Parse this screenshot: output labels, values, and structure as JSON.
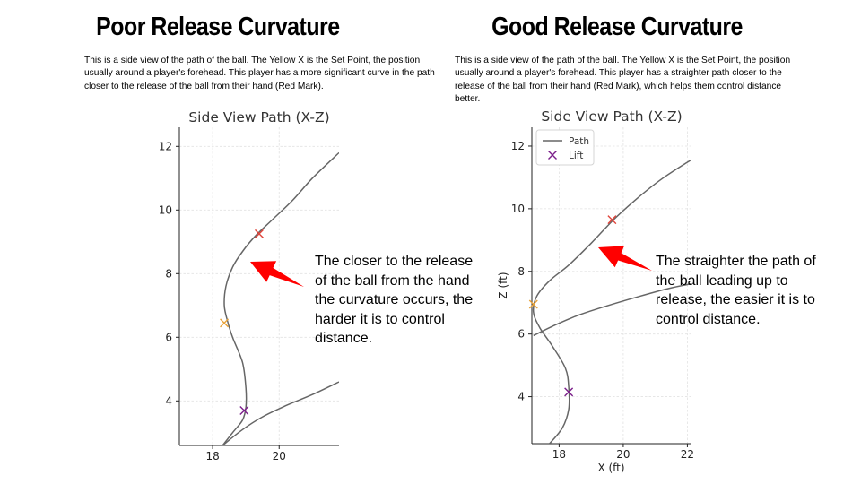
{
  "slide": {
    "left_title": "Poor Release Curvature",
    "right_title": "Good Release Curvature",
    "left_description": "This is a side view of the path of the ball. The Yellow X is the Set Point, the position usually around a player's forehead. This player has a more significant curve in the path closer to the release of the ball from their hand (Red Mark).",
    "right_description": "This is a side view of the path of the ball. The Yellow X is the Set Point, the position usually around a player's forehead. This player has a straighter path closer to the release of the ball from their hand (Red Mark), which helps them control distance better.",
    "left_annotation": "The closer to the release of the ball from the hand the curvature occurs, the harder it is to control distance.",
    "right_annotation": "The straighter the path of the ball leading up to release, the easier it is to control distance.",
    "arrow_color": "#ff0000"
  },
  "chart_data": [
    {
      "type": "line",
      "title": "Side View Path (X-Z)",
      "xlabel": "",
      "ylabel": "",
      "xlim": [
        17.0,
        21.8
      ],
      "ylim": [
        2.6,
        12.6
      ],
      "x_ticks": [
        18,
        20
      ],
      "y_ticks": [
        4,
        6,
        8,
        10,
        12
      ],
      "grid": true,
      "legend": null,
      "series": [
        {
          "role": "path",
          "color": "#666666",
          "points": [
            [
              18.3,
              2.6
            ],
            [
              18.6,
              3.0
            ],
            [
              18.9,
              3.4
            ],
            [
              19.0,
              3.8
            ],
            [
              19.0,
              4.4
            ],
            [
              18.9,
              5.2
            ],
            [
              18.6,
              6.0
            ],
            [
              18.45,
              6.5
            ],
            [
              18.35,
              7.0
            ],
            [
              18.4,
              7.6
            ],
            [
              18.6,
              8.2
            ],
            [
              18.9,
              8.7
            ],
            [
              19.3,
              9.2
            ],
            [
              19.8,
              9.7
            ],
            [
              20.4,
              10.3
            ],
            [
              21.0,
              11.0
            ],
            [
              21.8,
              11.8
            ]
          ]
        },
        {
          "role": "path",
          "color": "#666666",
          "points": [
            [
              18.3,
              2.6
            ],
            [
              18.9,
              3.1
            ],
            [
              19.5,
              3.5
            ],
            [
              20.2,
              3.85
            ],
            [
              21.0,
              4.2
            ],
            [
              21.8,
              4.6
            ]
          ]
        }
      ],
      "markers": [
        {
          "name": "Release",
          "x": 19.4,
          "y": 9.25,
          "color": "#e0443a"
        },
        {
          "name": "Set Point",
          "x": 18.35,
          "y": 6.45,
          "color": "#e8a33a"
        },
        {
          "name": "Lift",
          "x": 18.95,
          "y": 3.7,
          "color": "#7b1f8a"
        }
      ]
    },
    {
      "type": "line",
      "title": "Side View Path (X-Z)",
      "xlabel": "X (ft)",
      "ylabel": "Z (ft)",
      "xlim": [
        17.15,
        22.1
      ],
      "ylim": [
        2.5,
        12.6
      ],
      "x_ticks": [
        18,
        20,
        22
      ],
      "y_ticks": [
        4,
        6,
        8,
        10,
        12
      ],
      "grid": true,
      "legend": "top-left",
      "legend_items": [
        {
          "label": "Path",
          "kind": "line",
          "color": "#666666"
        },
        {
          "label": "Lift",
          "kind": "x",
          "color": "#7b1f8a"
        }
      ],
      "series": [
        {
          "role": "path",
          "color": "#666666",
          "points": [
            [
              17.7,
              2.5
            ],
            [
              18.1,
              3.0
            ],
            [
              18.3,
              3.6
            ],
            [
              18.3,
              4.3
            ],
            [
              18.2,
              4.9
            ],
            [
              17.8,
              5.6
            ],
            [
              17.4,
              6.2
            ],
            [
              17.2,
              6.7
            ],
            [
              17.3,
              7.2
            ],
            [
              17.7,
              7.7
            ],
            [
              18.3,
              8.2
            ],
            [
              19.0,
              8.9
            ],
            [
              19.7,
              9.65
            ],
            [
              20.4,
              10.3
            ],
            [
              21.2,
              10.95
            ],
            [
              22.1,
              11.55
            ]
          ]
        },
        {
          "role": "path",
          "color": "#666666",
          "points": [
            [
              17.2,
              5.95
            ],
            [
              17.8,
              6.25
            ],
            [
              18.6,
              6.6
            ],
            [
              19.5,
              6.9
            ],
            [
              20.5,
              7.2
            ],
            [
              21.4,
              7.45
            ],
            [
              22.1,
              7.6
            ]
          ]
        }
      ],
      "markers": [
        {
          "name": "Release",
          "x": 19.65,
          "y": 9.65,
          "color": "#e0443a"
        },
        {
          "name": "Set Point",
          "x": 17.2,
          "y": 6.95,
          "color": "#e8a33a"
        },
        {
          "name": "Lift",
          "x": 18.3,
          "y": 4.15,
          "color": "#7b1f8a"
        }
      ]
    }
  ]
}
